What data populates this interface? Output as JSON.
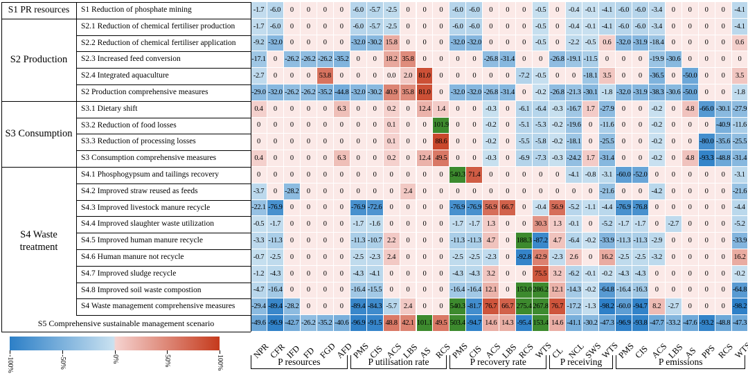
{
  "column_headers": [
    "NPR",
    "CFR",
    "IFD",
    "FD",
    "FGD",
    "AFD",
    "PMS",
    "CIS",
    "ACS",
    "LBS",
    "AS",
    "RCS",
    "PMS",
    "CIS",
    "ACS",
    "LBS",
    "RCS",
    "WTS",
    "CL",
    "NCL",
    "SWS",
    "WTS",
    "PMS",
    "CIS",
    "ACS",
    "LBS",
    "AS",
    "PPS",
    "RCS",
    "WTS"
  ],
  "column_groups": [
    "P resources",
    "P utilisation rate",
    "P recovery rate",
    "P receiving",
    "P emissions"
  ],
  "groups": [
    {
      "label": "S1 PR resources"
    },
    {
      "label": "S2 Production"
    },
    {
      "label": "S3 Consumption"
    },
    {
      "label": "S4 Waste treatment"
    },
    {
      "label": "S5 Comprehensive sustainable management scenario"
    }
  ],
  "rows": [
    {
      "label": "S1 Reduction of phosphate mining",
      "values": [
        "-1.7",
        "-6.0",
        "0",
        "0",
        "0",
        "0",
        "-6.0",
        "-5.7",
        "-2.5",
        "0",
        "0",
        "0",
        "-6.0",
        "-6.0",
        "0",
        "0",
        "0",
        "-0.5",
        "0",
        "-0.4",
        "-0.1",
        "-4.1",
        "-6.0",
        "-6.0",
        "-3.4",
        "0",
        "0",
        "0",
        "0",
        "-4.1"
      ]
    },
    {
      "label": "S2.1 Reduction of chemical fertiliser production",
      "values": [
        "-1.7",
        "-6.0",
        "0",
        "0",
        "0",
        "0",
        "-6.0",
        "-5.7",
        "-2.5",
        "0",
        "0",
        "0",
        "-6.0",
        "-6.0",
        "0",
        "0",
        "0",
        "-0.5",
        "0",
        "-0.4",
        "-0.1",
        "-4.1",
        "-6.0",
        "-6.0",
        "-3.4",
        "0",
        "0",
        "0",
        "0",
        "-4.1"
      ]
    },
    {
      "label": "S2.2 Reduction of chemical fertiliser application",
      "values": [
        "-9.2",
        "-32.0",
        "0",
        "0",
        "0",
        "0",
        "-32.0",
        "-30.2",
        "15.8",
        "0",
        "0",
        "0",
        "-32.0",
        "-32.0",
        "0",
        "0",
        "0",
        "-0.5",
        "0",
        "-2.2",
        "-0.5",
        "0.6",
        "-32.0",
        "-31.9",
        "-18.4",
        "0",
        "0",
        "0",
        "0",
        "0.6"
      ]
    },
    {
      "label": "S2.3 Increased feed conversion",
      "values": [
        "-17.1",
        "0",
        "-26.2",
        "-26.2",
        "-26.2",
        "-35.2",
        "0",
        "0",
        "18.2",
        "35.8",
        "0",
        "0",
        "0",
        "0",
        "-26.8",
        "-31.4",
        "0",
        "0",
        "-26.8",
        "-19.1",
        "-11.5",
        "0",
        "0",
        "0",
        "-19.9",
        "-30.6",
        "0",
        "0",
        "0",
        "0"
      ]
    },
    {
      "label": "S2.4 Integrated aquaculture",
      "values": [
        "-2.7",
        "0",
        "0",
        "0",
        "53.8",
        "0",
        "0",
        "0",
        "0.0",
        "2.0",
        "81.0",
        "0",
        "0",
        "0",
        "0",
        "0",
        "-7.2",
        "-0.5",
        "0",
        "0",
        "-18.1",
        "3.5",
        "0",
        "0",
        "-36.5",
        "0",
        "-50.0",
        "0",
        "0",
        "3.5"
      ]
    },
    {
      "label": "S2 Production comprehensive measures",
      "values": [
        "-29.0",
        "-32.0",
        "-26.2",
        "-26.2",
        "-35.2",
        "-44.8",
        "-32.0",
        "-30.2",
        "40.9",
        "35.8",
        "81.0",
        "0",
        "-32.0",
        "-32.0",
        "-26.8",
        "-31.4",
        "0",
        "-0.2",
        "-26.8",
        "-21.3",
        "-30.1",
        "-1.8",
        "-32.0",
        "-31.9",
        "-38.3",
        "-30.6",
        "-50.0",
        "0",
        "0",
        "-1.8"
      ]
    },
    {
      "label": "S3.1 Dietary shift",
      "values": [
        "0.4",
        "0",
        "0",
        "0",
        "0",
        "6.3",
        "0",
        "0",
        "0.2",
        "0",
        "12.4",
        "1.4",
        "0",
        "0",
        "-0.3",
        "0",
        "-6.1",
        "-6.4",
        "-0.3",
        "-16.7",
        "1.7",
        "-27.9",
        "0",
        "0",
        "-0.2",
        "0",
        "4.8",
        "-66.0",
        "-30.1",
        "-27.9"
      ]
    },
    {
      "label": "S3.2 Reduction of food losses",
      "values": [
        "0",
        "0",
        "0",
        "0",
        "0",
        "0",
        "0",
        "0",
        "0.1",
        "0",
        "0",
        "101.9",
        "0",
        "0",
        "-0.2",
        "0",
        "-5.1",
        "-5.3",
        "-0.2",
        "-19.6",
        "0",
        "-11.6",
        "0",
        "0",
        "-0.2",
        "0",
        "0",
        "0",
        "-40.9",
        "-11.6"
      ]
    },
    {
      "label": "S3.3 Reduction of processing losses",
      "values": [
        "0",
        "0",
        "0",
        "0",
        "0",
        "0",
        "0",
        "0",
        "0.1",
        "0",
        "0",
        "88.6",
        "0",
        "0",
        "-0.2",
        "0",
        "-5.5",
        "-5.8",
        "-0.2",
        "-18.1",
        "0",
        "-25.5",
        "0",
        "0",
        "-0.2",
        "0",
        "0",
        "-80.0",
        "-35.6",
        "-25.5"
      ]
    },
    {
      "label": "S3 Consumption comprehensive measures",
      "values": [
        "0.4",
        "0",
        "0",
        "0",
        "0",
        "6.3",
        "0",
        "0",
        "0.2",
        "0",
        "12.4",
        "49.5",
        "0",
        "0",
        "-0.3",
        "0",
        "-6.9",
        "-7.3",
        "-0.3",
        "-24.2",
        "1.7",
        "-31.4",
        "0",
        "0",
        "-0.2",
        "0",
        "4.8",
        "-93.3",
        "-48.8",
        "-31.4"
      ]
    },
    {
      "label": "S4.1 Phosphogypsum and tailings recovery",
      "values": [
        "0",
        "0",
        "0",
        "0",
        "0",
        "0",
        "0",
        "0",
        "0",
        "0",
        "0",
        "0",
        "540.3",
        "71.4",
        "0",
        "0",
        "0",
        "0",
        "0",
        "-4.1",
        "-0.8",
        "-3.1",
        "-60.0",
        "-52.0",
        "0",
        "0",
        "0",
        "0",
        "0",
        "-3.1"
      ]
    },
    {
      "label": "S4.2 Improved straw reused as feeds",
      "values": [
        "-3.7",
        "0",
        "-28.2",
        "0",
        "0",
        "0",
        "0",
        "0",
        "0",
        "2.4",
        "0",
        "0",
        "0",
        "0",
        "0",
        "0",
        "0",
        "0",
        "0",
        "0",
        "0",
        "-21.6",
        "0",
        "0",
        "-4.2",
        "0",
        "0",
        "0",
        "0",
        "-21.6"
      ]
    },
    {
      "label": "S4.3 Improved livestock manure recycle",
      "values": [
        "-22.1",
        "-76.9",
        "0",
        "0",
        "0",
        "0",
        "-76.9",
        "-72.6",
        "0",
        "0",
        "0",
        "0",
        "-76.9",
        "-76.9",
        "56.9",
        "66.7",
        "0",
        "-0.4",
        "56.9",
        "-5.2",
        "-1.1",
        "-4.4",
        "-76.9",
        "-76.8",
        "0",
        "0",
        "0",
        "0",
        "0",
        "-4.4"
      ]
    },
    {
      "label": "S4.4 Improved slaughter waste utilization",
      "values": [
        "-0.5",
        "-1.7",
        "0",
        "0",
        "0",
        "0",
        "-1.7",
        "-1.6",
        "0",
        "0",
        "0",
        "0",
        "-1.7",
        "-1.7",
        "1.3",
        "0",
        "0",
        "30.3",
        "1.3",
        "-0.1",
        "0",
        "-5.2",
        "-1.7",
        "-1.7",
        "0",
        "-2.7",
        "0",
        "0",
        "0",
        "-5.2"
      ]
    },
    {
      "label": "S4.5 Improved human manure recycle",
      "values": [
        "-3.3",
        "-11.3",
        "0",
        "0",
        "0",
        "0",
        "-11.3",
        "-10.7",
        "2.2",
        "0",
        "0",
        "0",
        "-11.3",
        "-11.3",
        "4.7",
        "0",
        "188.3",
        "-87.2",
        "4.7",
        "-6.4",
        "-0.2",
        "-33.9",
        "-11.3",
        "-11.3",
        "-2.9",
        "0",
        "0",
        "0",
        "0",
        "-33.9"
      ]
    },
    {
      "label": "S4.6 Human manure not recycle",
      "values": [
        "-0.7",
        "-2.5",
        "0",
        "0",
        "0",
        "0",
        "-2.5",
        "-2.3",
        "2.4",
        "0",
        "0",
        "0",
        "-2.5",
        "-2.5",
        "-2.3",
        "0",
        "-92.8",
        "42.9",
        "-2.3",
        "2.6",
        "0",
        "16.2",
        "-2.5",
        "-2.5",
        "-3.2",
        "0",
        "0",
        "0",
        "0",
        "16.2"
      ]
    },
    {
      "label": "S4.7 Improved sludge recycle",
      "values": [
        "-1.2",
        "-4.3",
        "0",
        "0",
        "0",
        "0",
        "-4.3",
        "-4.1",
        "0",
        "0",
        "0",
        "0",
        "-4.3",
        "-4.3",
        "3.2",
        "0",
        "0",
        "75.5",
        "3.2",
        "-6.2",
        "-0.1",
        "-0.2",
        "-4.3",
        "-4.3",
        "0",
        "0",
        "0",
        "0",
        "0",
        "-0.2"
      ]
    },
    {
      "label": "S4.8 Improved soil waste compostion",
      "values": [
        "-4.7",
        "-16.4",
        "0",
        "0",
        "0",
        "0",
        "-16.4",
        "-15.5",
        "0",
        "0",
        "0",
        "0",
        "-16.4",
        "-16.4",
        "12.1",
        "0",
        "153.0",
        "286.2",
        "12.1",
        "-14.3",
        "-0.2",
        "-64.8",
        "-16.4",
        "-16.3",
        "0",
        "0",
        "0",
        "0",
        "0",
        "-64.8"
      ]
    },
    {
      "label": "S4 Waste management comprehensive measures",
      "values": [
        "-29.4",
        "-89.4",
        "-28.2",
        "0",
        "0",
        "0",
        "-89.4",
        "-84.3",
        "-5.7",
        "2.4",
        "0",
        "0",
        "540.3",
        "-81.7",
        "76.7",
        "66.7",
        "275.4",
        "267.8",
        "76.7",
        "-17.2",
        "-1.3",
        "-98.2",
        "-60.0",
        "-94.7",
        "8.2",
        "-2.7",
        "0",
        "0",
        "0",
        "-98.2"
      ]
    },
    {
      "label": "",
      "values": [
        "-49.6",
        "-96.9",
        "-42.7",
        "-26.2",
        "-35.2",
        "-40.6",
        "-96.9",
        "-91.5",
        "48.8",
        "42.1",
        "101.1",
        "49.5",
        "503.4",
        "-94.7",
        "14.6",
        "14.3",
        "-95.4",
        "153.4",
        "14.6",
        "-41.1",
        "-30.2",
        "-47.3",
        "-96.9",
        "-93.8",
        "-47.7",
        "-33.2",
        "-47.6",
        "-93.2",
        "-48.8",
        "-47.3"
      ]
    }
  ],
  "colorbar": {
    "ticks": [
      "-100%",
      "-50%",
      "0%",
      "50%",
      "100%"
    ],
    "neg_color": "#2c7fc7",
    "neg_light": "#c9e1f0",
    "pos_light": "#f5d2cf",
    "pos_color": "#c53a1c",
    "over_color": "#3d8a2e"
  }
}
